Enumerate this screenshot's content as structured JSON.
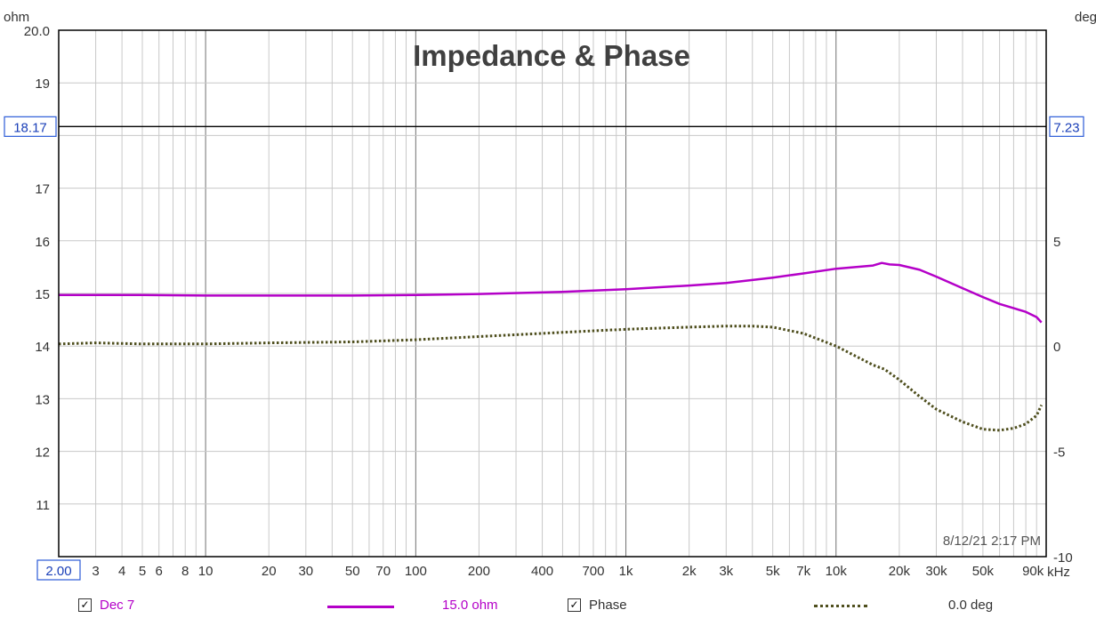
{
  "chart_data": {
    "type": "line",
    "title": "Impedance & Phase",
    "left_axis": {
      "unit": "ohm",
      "range": [
        10.0,
        20.0
      ],
      "tick_labels": [
        "20.0",
        "19",
        "17",
        "16",
        "15",
        "14",
        "13",
        "12",
        "11"
      ]
    },
    "right_axis": {
      "unit": "deg",
      "range": [
        -10,
        15
      ],
      "tick_labels": [
        "5",
        "0",
        "-5",
        "-10"
      ]
    },
    "x_axis": {
      "scale": "log",
      "unit": "kHz",
      "range": [
        2,
        100000
      ],
      "tick_labels": [
        {
          "v": 2,
          "t": "2.00"
        },
        {
          "v": 3,
          "t": "3"
        },
        {
          "v": 4,
          "t": "4"
        },
        {
          "v": 5,
          "t": "5"
        },
        {
          "v": 6,
          "t": "6"
        },
        {
          "v": 8,
          "t": "8"
        },
        {
          "v": 10,
          "t": "10"
        },
        {
          "v": 20,
          "t": "20"
        },
        {
          "v": 30,
          "t": "30"
        },
        {
          "v": 50,
          "t": "50"
        },
        {
          "v": 70,
          "t": "70"
        },
        {
          "v": 100,
          "t": "100"
        },
        {
          "v": 200,
          "t": "200"
        },
        {
          "v": 400,
          "t": "400"
        },
        {
          "v": 700,
          "t": "700"
        },
        {
          "v": 1000,
          "t": "1k"
        },
        {
          "v": 2000,
          "t": "2k"
        },
        {
          "v": 3000,
          "t": "3k"
        },
        {
          "v": 5000,
          "t": "5k"
        },
        {
          "v": 7000,
          "t": "7k"
        },
        {
          "v": 10000,
          "t": "10k"
        },
        {
          "v": 20000,
          "t": "20k"
        },
        {
          "v": 30000,
          "t": "30k"
        },
        {
          "v": 50000,
          "t": "50k"
        },
        {
          "v": 90000,
          "t": "90k"
        }
      ]
    },
    "cursor": {
      "left_value": "18.17",
      "right_value": "7.23"
    },
    "timestamp": "8/12/21 2:17 PM",
    "grid": true,
    "series": [
      {
        "name": "Dec 7",
        "axis": "left",
        "color": "#b400c8",
        "style": "solid",
        "x": [
          2,
          5,
          10,
          20,
          50,
          100,
          200,
          500,
          1000,
          2000,
          3000,
          5000,
          7000,
          10000,
          15000,
          16500,
          18000,
          20000,
          25000,
          30000,
          40000,
          50000,
          60000,
          70000,
          80000,
          90000,
          95000
        ],
        "y": [
          14.97,
          14.97,
          14.96,
          14.96,
          14.96,
          14.97,
          14.99,
          15.03,
          15.08,
          15.15,
          15.2,
          15.3,
          15.38,
          15.47,
          15.53,
          15.58,
          15.55,
          15.54,
          15.45,
          15.32,
          15.1,
          14.93,
          14.8,
          14.72,
          14.65,
          14.55,
          14.45
        ]
      },
      {
        "name": "Phase",
        "axis": "right",
        "color": "#4f4f1e",
        "style": "dotted",
        "x": [
          2,
          3,
          5,
          10,
          20,
          50,
          100,
          200,
          500,
          1000,
          2000,
          3000,
          4000,
          5000,
          7000,
          10000,
          15000,
          17000,
          20000,
          25000,
          30000,
          40000,
          50000,
          60000,
          70000,
          80000,
          90000,
          95000
        ],
        "y": [
          0.1,
          0.15,
          0.1,
          0.1,
          0.15,
          0.2,
          0.3,
          0.45,
          0.65,
          0.8,
          0.9,
          0.95,
          0.95,
          0.9,
          0.6,
          0.0,
          -0.9,
          -1.1,
          -1.6,
          -2.4,
          -3.0,
          -3.6,
          -3.95,
          -4.0,
          -3.9,
          -3.7,
          -3.3,
          -2.8
        ]
      }
    ]
  },
  "legend": [
    {
      "label": "Dec 7",
      "checked": true,
      "value": "15.0 ohm",
      "color": "#b400c8"
    },
    {
      "label": "Phase",
      "checked": true,
      "value": "0.0 deg",
      "color": "#5a5a2a"
    }
  ]
}
